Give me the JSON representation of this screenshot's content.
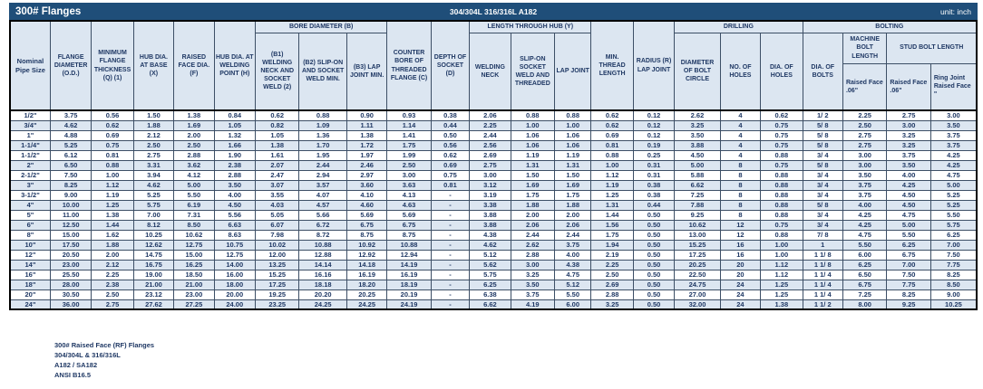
{
  "title_bar": {
    "title": "300# Flanges",
    "spec": "304/304L 316/316L A182",
    "unit": "unit: inch"
  },
  "colors": {
    "bar_background": "#1F4E79",
    "header_fill": "#DCE6F1",
    "stripe_fill": "#DCE6F1",
    "text": "#1F3864",
    "gridline": "#3D4F66"
  },
  "table": {
    "header": {
      "pipe_size": "Nominal Pipe Size",
      "od": "FLANGE DIAMETER (O.D.)",
      "thickness": "MINIMUM FLANGE THICKNESS (Q) (1)",
      "hub_base": "HUB DIA. AT BASE (X)",
      "raised_face": "RAISED FACE DIA. (F)",
      "hub_weld": "HUB DIA. AT WELDING POINT (H)",
      "bore_group": "BORE DIAMETER (B)",
      "b1": "(B1) WELDING NECK AND SOCKET WELD (2)",
      "b2": "(B2) SLIP-ON AND SOCKET WELD MIN.",
      "b3": "(B3) LAP JOINT MIN.",
      "counter_bore": "COUNTER BORE OF THREADED FLANGE (C)",
      "socket_depth": "DEPTH OF SOCKET (D)",
      "hub_length_group": "LENGTH THROUGH HUB (Y)",
      "y_welding_neck": "WELDING NECK",
      "y_slip_on": "SLIP-ON SOCKET WELD AND THREADED",
      "y_lap_joint": "LAP JOINT",
      "min_thread": "MIN. THREAD LENGTH",
      "radius": "RADIUS (R) LAP JOINT",
      "drilling_group": "DRILLING",
      "bolt_circle": "DIAMETER OF BOLT CIRCLE",
      "num_holes": "NO. OF HOLES",
      "dia_holes": "DIA. OF HOLES",
      "bolting_group": "BOLTING",
      "dia_bolts": "DIA. OF BOLTS",
      "machine_bolt": "MACHINE BOLT LENGTH",
      "stud_bolt": "STUD BOLT LENGTH",
      "mb_raised_face": "Raised Face .06\"",
      "sb_raised_face": "Raised Face .06\"",
      "sb_ring_joint": "Ring Joint Raised Face \""
    },
    "rows": [
      [
        "1/2\"",
        "3.75",
        "0.56",
        "1.50",
        "1.38",
        "0.84",
        "0.62",
        "0.88",
        "0.90",
        "0.93",
        "0.38",
        "2.06",
        "0.88",
        "0.88",
        "0.62",
        "0.12",
        "2.62",
        "4",
        "0.62",
        "1/ 2",
        "2.25",
        "2.75",
        "3.00"
      ],
      [
        "3/4\"",
        "4.62",
        "0.62",
        "1.88",
        "1.69",
        "1.05",
        "0.82",
        "1.09",
        "1.11",
        "1.14",
        "0.44",
        "2.25",
        "1.00",
        "1.00",
        "0.62",
        "0.12",
        "3.25",
        "4",
        "0.75",
        "5/ 8",
        "2.50",
        "3.00",
        "3.50"
      ],
      [
        "1\"",
        "4.88",
        "0.69",
        "2.12",
        "2.00",
        "1.32",
        "1.05",
        "1.36",
        "1.38",
        "1.41",
        "0.50",
        "2.44",
        "1.06",
        "1.06",
        "0.69",
        "0.12",
        "3.50",
        "4",
        "0.75",
        "5/ 8",
        "2.75",
        "3.25",
        "3.75"
      ],
      [
        "1-1/4\"",
        "5.25",
        "0.75",
        "2.50",
        "2.50",
        "1.66",
        "1.38",
        "1.70",
        "1.72",
        "1.75",
        "0.56",
        "2.56",
        "1.06",
        "1.06",
        "0.81",
        "0.19",
        "3.88",
        "4",
        "0.75",
        "5/ 8",
        "2.75",
        "3.25",
        "3.75"
      ],
      [
        "1-1/2\"",
        "6.12",
        "0.81",
        "2.75",
        "2.88",
        "1.90",
        "1.61",
        "1.95",
        "1.97",
        "1.99",
        "0.62",
        "2.69",
        "1.19",
        "1.19",
        "0.88",
        "0.25",
        "4.50",
        "4",
        "0.88",
        "3/ 4",
        "3.00",
        "3.75",
        "4.25"
      ],
      [
        "2\"",
        "6.50",
        "0.88",
        "3.31",
        "3.62",
        "2.38",
        "2.07",
        "2.44",
        "2.46",
        "2.50",
        "0.69",
        "2.75",
        "1.31",
        "1.31",
        "1.00",
        "0.31",
        "5.00",
        "8",
        "0.75",
        "5/ 8",
        "3.00",
        "3.50",
        "4.25"
      ],
      [
        "2-1/2\"",
        "7.50",
        "1.00",
        "3.94",
        "4.12",
        "2.88",
        "2.47",
        "2.94",
        "2.97",
        "3.00",
        "0.75",
        "3.00",
        "1.50",
        "1.50",
        "1.12",
        "0.31",
        "5.88",
        "8",
        "0.88",
        "3/ 4",
        "3.50",
        "4.00",
        "4.75"
      ],
      [
        "3\"",
        "8.25",
        "1.12",
        "4.62",
        "5.00",
        "3.50",
        "3.07",
        "3.57",
        "3.60",
        "3.63",
        "0.81",
        "3.12",
        "1.69",
        "1.69",
        "1.19",
        "0.38",
        "6.62",
        "8",
        "0.88",
        "3/ 4",
        "3.75",
        "4.25",
        "5.00"
      ],
      [
        "3-1/2\"",
        "9.00",
        "1.19",
        "5.25",
        "5.50",
        "4.00",
        "3.55",
        "4.07",
        "4.10",
        "4.13",
        "-",
        "3.19",
        "1.75",
        "1.75",
        "1.25",
        "0.38",
        "7.25",
        "8",
        "0.88",
        "3/ 4",
        "3.75",
        "4.50",
        "5.25"
      ],
      [
        "4\"",
        "10.00",
        "1.25",
        "5.75",
        "6.19",
        "4.50",
        "4.03",
        "4.57",
        "4.60",
        "4.63",
        "-",
        "3.38",
        "1.88",
        "1.88",
        "1.31",
        "0.44",
        "7.88",
        "8",
        "0.88",
        "5/ 8",
        "4.00",
        "4.50",
        "5.25"
      ],
      [
        "5\"",
        "11.00",
        "1.38",
        "7.00",
        "7.31",
        "5.56",
        "5.05",
        "5.66",
        "5.69",
        "5.69",
        "-",
        "3.88",
        "2.00",
        "2.00",
        "1.44",
        "0.50",
        "9.25",
        "8",
        "0.88",
        "3/ 4",
        "4.25",
        "4.75",
        "5.50"
      ],
      [
        "6\"",
        "12.50",
        "1.44",
        "8.12",
        "8.50",
        "6.63",
        "6.07",
        "6.72",
        "6.75",
        "6.75",
        "-",
        "3.88",
        "2.06",
        "2.06",
        "1.56",
        "0.50",
        "10.62",
        "12",
        "0.75",
        "3/ 4",
        "4.25",
        "5.00",
        "5.75"
      ],
      [
        "8\"",
        "15.00",
        "1.62",
        "10.25",
        "10.62",
        "8.63",
        "7.98",
        "8.72",
        "8.75",
        "8.75",
        "-",
        "4.38",
        "2.44",
        "2.44",
        "1.75",
        "0.50",
        "13.00",
        "12",
        "0.88",
        "7/ 8",
        "4.75",
        "5.50",
        "6.25"
      ],
      [
        "10\"",
        "17.50",
        "1.88",
        "12.62",
        "12.75",
        "10.75",
        "10.02",
        "10.88",
        "10.92",
        "10.88",
        "-",
        "4.62",
        "2.62",
        "3.75",
        "1.94",
        "0.50",
        "15.25",
        "16",
        "1.00",
        "1",
        "5.50",
        "6.25",
        "7.00"
      ],
      [
        "12\"",
        "20.50",
        "2.00",
        "14.75",
        "15.00",
        "12.75",
        "12.00",
        "12.88",
        "12.92",
        "12.94",
        "-",
        "5.12",
        "2.88",
        "4.00",
        "2.19",
        "0.50",
        "17.25",
        "16",
        "1.00",
        "1 1/ 8",
        "6.00",
        "6.75",
        "7.50"
      ],
      [
        "14\"",
        "23.00",
        "2.12",
        "16.75",
        "16.25",
        "14.00",
        "13.25",
        "14.14",
        "14.18",
        "14.19",
        "-",
        "5.62",
        "3.00",
        "4.38",
        "2.25",
        "0.50",
        "20.25",
        "20",
        "1.12",
        "1 1/ 8",
        "6.25",
        "7.00",
        "7.75"
      ],
      [
        "16\"",
        "25.50",
        "2.25",
        "19.00",
        "18.50",
        "16.00",
        "15.25",
        "16.16",
        "16.19",
        "16.19",
        "-",
        "5.75",
        "3.25",
        "4.75",
        "2.50",
        "0.50",
        "22.50",
        "20",
        "1.12",
        "1 1/ 4",
        "6.50",
        "7.50",
        "8.25"
      ],
      [
        "18\"",
        "28.00",
        "2.38",
        "21.00",
        "21.00",
        "18.00",
        "17.25",
        "18.18",
        "18.20",
        "18.19",
        "-",
        "6.25",
        "3.50",
        "5.12",
        "2.69",
        "0.50",
        "24.75",
        "24",
        "1.25",
        "1 1/ 4",
        "6.75",
        "7.75",
        "8.50"
      ],
      [
        "20\"",
        "30.50",
        "2.50",
        "23.12",
        "23.00",
        "20.00",
        "19.25",
        "20.20",
        "20.25",
        "20.19",
        "-",
        "6.38",
        "3.75",
        "5.50",
        "2.88",
        "0.50",
        "27.00",
        "24",
        "1.25",
        "1 1/ 4",
        "7.25",
        "8.25",
        "9.00"
      ],
      [
        "24\"",
        "36.00",
        "2.75",
        "27.62",
        "27.25",
        "24.00",
        "23.25",
        "24.25",
        "24.25",
        "24.19",
        "-",
        "6.62",
        "4.19",
        "6.00",
        "3.25",
        "0.50",
        "32.00",
        "24",
        "1.38",
        "1 1/ 2",
        "8.00",
        "9.25",
        "10.25"
      ]
    ]
  },
  "footer": {
    "line1": "300# Raised Face (RF) Flanges",
    "line2": "304/304L & 316/316L",
    "line3": "A182 / SA182",
    "line4": "ANSI B16.5"
  }
}
